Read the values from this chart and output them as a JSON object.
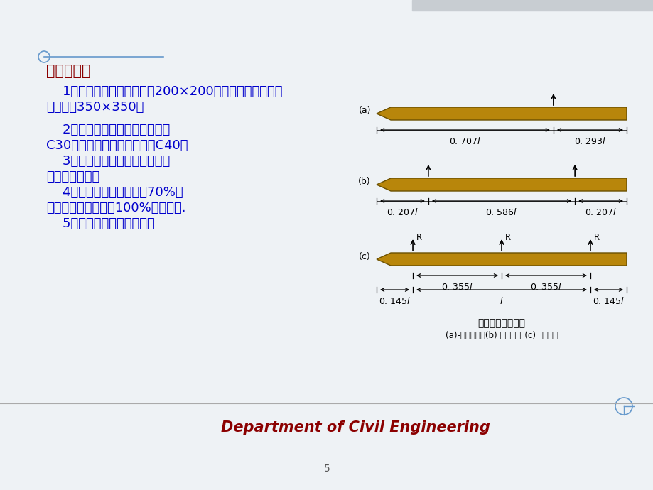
{
  "bg_color": "#eef2f5",
  "title_color": "#8B0000",
  "text_color": "#0000CC",
  "pile_color": "#B8860B",
  "pile_edge_color": "#6B5000",
  "section_title": "施工要点：",
  "line1a": "    1）混凝土方桩截面不小于200×200；预应力混凝土桩截",
  "line1b": "面不小于350×350；",
  "line2a": "    2）预制桩砼强度等级不宜低于",
  "line2b": "C30，预应力混凝土桩不低于C40；",
  "line3a": "    3）浇筑应由桩顶向桩尖连续进",
  "line3b": "行，严禁中断。",
  "line4a": "    4）混凝土设计强度达到70%及",
  "line4b": "以上方可起吊，达到100%方可运输.",
  "line5": "    5）吊点要符合设计规定。",
  "diagram_caption_line1": "桩的合理吊点位置",
  "diagram_caption_line2": "(a)-一点起吊；(b) 两点起吊；(c) 三点起吊",
  "footer_text": "Department of Civil Engineering",
  "footer_color": "#8B0000",
  "label_a": "(a)",
  "label_b": "(b)",
  "label_c": "(c)",
  "dim_a1": "0. 707$l$",
  "dim_a2": "0. 293$l$",
  "dim_b1": "0. 207$l$",
  "dim_b2": "0. 586$l$",
  "dim_b3": "0. 207$l$",
  "dim_c1": "0. 145$l$",
  "dim_c2": "0. 355$l$",
  "dim_c3": "$l$",
  "dim_c4": "0. 355$l$",
  "dim_c5": "0. 145$l$",
  "page_num": "5"
}
